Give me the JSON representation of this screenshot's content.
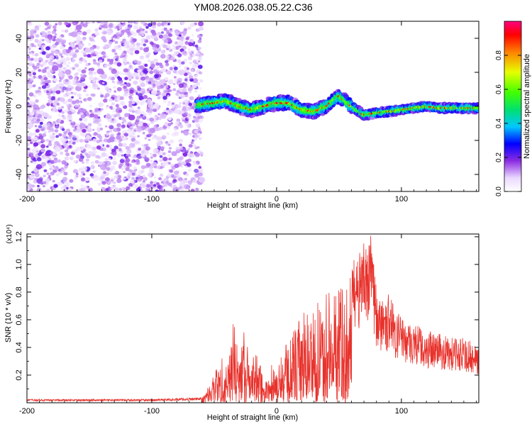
{
  "figure": {
    "title": "YM08.2026.038.05.22.C36"
  },
  "chart_data": [
    {
      "type": "heatmap",
      "title": "YM08.2026.038.05.22.C36",
      "xlabel": "Height of straight line (km)",
      "ylabel": "Frequency (Hz)",
      "xlim": [
        -200,
        162
      ],
      "ylim": [
        -50,
        50
      ],
      "x_ticks": [
        -200,
        -100,
        0,
        100
      ],
      "y_ticks": [
        -40,
        -20,
        0,
        20,
        40
      ],
      "colorbar": {
        "label": "Normalized spectral amplitude",
        "range": [
          0,
          1
        ],
        "ticks": [
          0.0,
          0.2,
          0.4,
          0.6,
          0.8
        ]
      },
      "regions": [
        {
          "x": [
            -200,
            -62
          ],
          "description": "noise",
          "amplitude": 0.15
        },
        {
          "x": [
            -62,
            162
          ],
          "description": "signal near 0 Hz",
          "amplitude": 0.9
        }
      ],
      "ridge": {
        "x": [
          -70,
          -50,
          -40,
          -30,
          -20,
          -10,
          0,
          10,
          20,
          30,
          40,
          50,
          60,
          70,
          80,
          90,
          100,
          110,
          120,
          130,
          140,
          150,
          162
        ],
        "freq": [
          0,
          2,
          3,
          0,
          -2,
          0,
          2,
          2,
          -2,
          -3,
          0,
          6,
          0,
          -5,
          -4,
          -3,
          -2,
          -1,
          0,
          -1,
          -1,
          -1,
          -1
        ]
      },
      "grid": false
    },
    {
      "type": "line",
      "xlabel": "Height of straight line (km)",
      "ylabel": "SNR (10 * v/v)",
      "y_multiplier": "(x10⁴)",
      "xlim": [
        -200,
        162
      ],
      "ylim": [
        0,
        1.22
      ],
      "x_ticks": [
        -200,
        -100,
        0,
        100
      ],
      "y_ticks": [
        0.2,
        0.4,
        0.6,
        0.8,
        1.0,
        1.2
      ],
      "series": [
        {
          "color": "#e8322c",
          "x": [
            -200,
            -100,
            -60,
            -55,
            -45,
            -40,
            -35,
            -30,
            -25,
            -20,
            -15,
            -10,
            -5,
            0,
            5,
            10,
            15,
            20,
            25,
            30,
            35,
            40,
            45,
            50,
            55,
            60,
            65,
            70,
            75,
            80,
            85,
            90,
            95,
            100,
            110,
            120,
            130,
            140,
            150,
            162
          ],
          "values": [
            0.02,
            0.02,
            0.03,
            0.12,
            0.3,
            0.4,
            0.55,
            0.45,
            0.5,
            0.3,
            0.35,
            0.15,
            0.28,
            0.25,
            0.35,
            0.45,
            0.55,
            0.6,
            0.65,
            0.75,
            0.65,
            0.85,
            0.7,
            0.9,
            0.75,
            0.95,
            1.05,
            1.1,
            1.2,
            0.8,
            0.7,
            0.75,
            0.65,
            0.6,
            0.55,
            0.5,
            0.48,
            0.45,
            0.45,
            0.4
          ]
        }
      ],
      "grid": false
    }
  ]
}
